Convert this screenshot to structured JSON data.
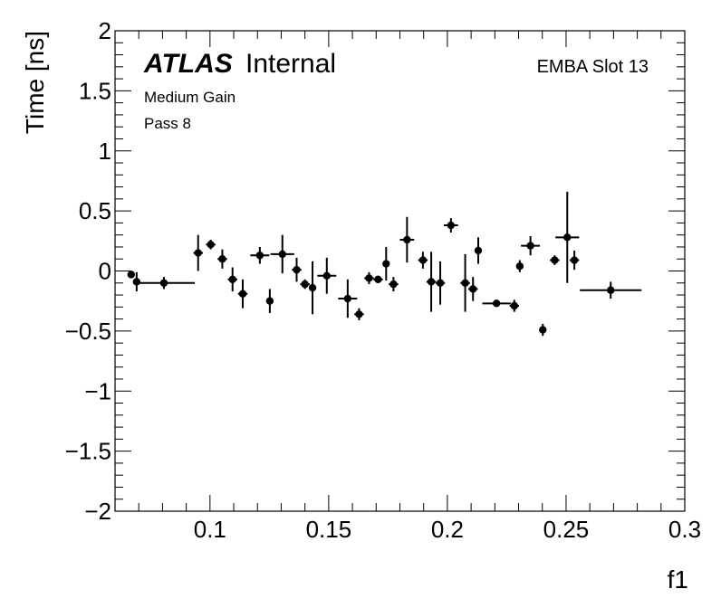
{
  "chart_data": {
    "type": "scatter",
    "title": "",
    "xlabel": "f1",
    "ylabel": "Time [ns]",
    "xlim": [
      0.06,
      0.3
    ],
    "ylim": [
      -2,
      2
    ],
    "grid": false,
    "legend": "none",
    "x_ticks": [
      {
        "value": 0.1,
        "label": "0.1"
      },
      {
        "value": 0.15,
        "label": "0.15"
      },
      {
        "value": 0.2,
        "label": "0.2"
      },
      {
        "value": 0.25,
        "label": "0.25"
      },
      {
        "value": 0.3,
        "label": "0.3"
      }
    ],
    "y_ticks": [
      {
        "value": 2,
        "label": "2"
      },
      {
        "value": 1.5,
        "label": "1.5"
      },
      {
        "value": 1,
        "label": "1"
      },
      {
        "value": 0.5,
        "label": "0.5"
      },
      {
        "value": 0,
        "label": "0"
      },
      {
        "value": -0.5,
        "label": "−0.5"
      },
      {
        "value": -1,
        "label": "−1"
      },
      {
        "value": -1.5,
        "label": "−1.5"
      },
      {
        "value": -2,
        "label": "−2"
      }
    ],
    "annotations": {
      "atlas": "ATLAS",
      "internal": "Internal",
      "gain": "Medium Gain",
      "pass": "Pass 8",
      "module": "EMBA Slot 13"
    },
    "marker_color": "#000000",
    "points": [
      {
        "x": 0.0668,
        "y": -0.03,
        "xerr": 0.001,
        "yerr": 0.03
      },
      {
        "x": 0.0691,
        "y": -0.09,
        "xerr": 0.001,
        "yerr": 0.08
      },
      {
        "x": 0.0806,
        "y": -0.1,
        "xerr": 0.013,
        "yerr": 0.05
      },
      {
        "x": 0.095,
        "y": 0.15,
        "xerr": 0.002,
        "yerr": 0.15
      },
      {
        "x": 0.1003,
        "y": 0.22,
        "xerr": 0.002,
        "yerr": 0.04
      },
      {
        "x": 0.1052,
        "y": 0.1,
        "xerr": 0.002,
        "yerr": 0.08
      },
      {
        "x": 0.1095,
        "y": -0.07,
        "xerr": 0.002,
        "yerr": 0.1
      },
      {
        "x": 0.1138,
        "y": -0.19,
        "xerr": 0.002,
        "yerr": 0.12
      },
      {
        "x": 0.121,
        "y": 0.13,
        "xerr": 0.004,
        "yerr": 0.07
      },
      {
        "x": 0.1252,
        "y": -0.25,
        "xerr": 0.001,
        "yerr": 0.1
      },
      {
        "x": 0.1305,
        "y": 0.14,
        "xerr": 0.005,
        "yerr": 0.16
      },
      {
        "x": 0.1365,
        "y": 0.01,
        "xerr": 0.002,
        "yerr": 0.1
      },
      {
        "x": 0.14,
        "y": -0.11,
        "xerr": 0.002,
        "yerr": 0.04
      },
      {
        "x": 0.1432,
        "y": -0.14,
        "xerr": 0.001,
        "yerr": 0.22
      },
      {
        "x": 0.1492,
        "y": -0.04,
        "xerr": 0.004,
        "yerr": 0.15
      },
      {
        "x": 0.158,
        "y": -0.23,
        "xerr": 0.004,
        "yerr": 0.16
      },
      {
        "x": 0.1628,
        "y": -0.36,
        "xerr": 0.002,
        "yerr": 0.05
      },
      {
        "x": 0.167,
        "y": -0.06,
        "xerr": 0.002,
        "yerr": 0.05
      },
      {
        "x": 0.1708,
        "y": -0.07,
        "xerr": 0.002,
        "yerr": 0.03
      },
      {
        "x": 0.1742,
        "y": 0.06,
        "xerr": 0.001,
        "yerr": 0.14
      },
      {
        "x": 0.1773,
        "y": -0.11,
        "xerr": 0.002,
        "yerr": 0.06
      },
      {
        "x": 0.183,
        "y": 0.26,
        "xerr": 0.003,
        "yerr": 0.19
      },
      {
        "x": 0.1897,
        "y": 0.09,
        "xerr": 0.002,
        "yerr": 0.07
      },
      {
        "x": 0.1932,
        "y": -0.09,
        "xerr": 0.002,
        "yerr": 0.25
      },
      {
        "x": 0.197,
        "y": -0.1,
        "xerr": 0.002,
        "yerr": 0.18
      },
      {
        "x": 0.2015,
        "y": 0.38,
        "xerr": 0.003,
        "yerr": 0.06
      },
      {
        "x": 0.2075,
        "y": -0.1,
        "xerr": 0.002,
        "yerr": 0.24
      },
      {
        "x": 0.2108,
        "y": -0.15,
        "xerr": 0.002,
        "yerr": 0.1
      },
      {
        "x": 0.213,
        "y": 0.17,
        "xerr": 0.001,
        "yerr": 0.11
      },
      {
        "x": 0.2207,
        "y": -0.27,
        "xerr": 0.006,
        "yerr": 0.02
      },
      {
        "x": 0.2282,
        "y": -0.29,
        "xerr": 0.002,
        "yerr": 0.05
      },
      {
        "x": 0.2305,
        "y": 0.04,
        "xerr": 0.001,
        "yerr": 0.05
      },
      {
        "x": 0.235,
        "y": 0.21,
        "xerr": 0.004,
        "yerr": 0.08
      },
      {
        "x": 0.2402,
        "y": -0.49,
        "xerr": 0.001,
        "yerr": 0.05
      },
      {
        "x": 0.2452,
        "y": 0.09,
        "xerr": 0.002,
        "yerr": 0.04
      },
      {
        "x": 0.2505,
        "y": 0.28,
        "xerr": 0.005,
        "yerr": 0.38
      },
      {
        "x": 0.2535,
        "y": 0.09,
        "xerr": 0.002,
        "yerr": 0.08
      },
      {
        "x": 0.2688,
        "y": -0.16,
        "xerr": 0.013,
        "yerr": 0.07
      }
    ]
  }
}
